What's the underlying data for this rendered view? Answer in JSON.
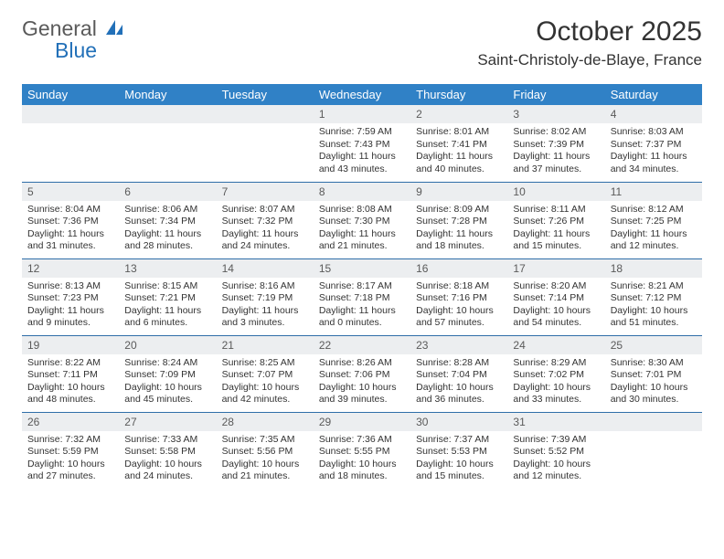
{
  "logo": {
    "general": "General",
    "blue": "Blue"
  },
  "title": "October 2025",
  "location": "Saint-Christoly-de-Blaye, France",
  "colors": {
    "header_bg": "#3081c6",
    "header_text": "#ffffff",
    "daynum_bg": "#eceef0",
    "rule": "#2f6ea8",
    "body_text": "#333333",
    "logo_gray": "#5a5a5a",
    "logo_blue": "#2270b8"
  },
  "weekdays": [
    "Sunday",
    "Monday",
    "Tuesday",
    "Wednesday",
    "Thursday",
    "Friday",
    "Saturday"
  ],
  "rows": [
    [
      {
        "n": "",
        "sr": "",
        "ss": "",
        "d1": "",
        "d2": ""
      },
      {
        "n": "",
        "sr": "",
        "ss": "",
        "d1": "",
        "d2": ""
      },
      {
        "n": "",
        "sr": "",
        "ss": "",
        "d1": "",
        "d2": ""
      },
      {
        "n": "1",
        "sr": "Sunrise: 7:59 AM",
        "ss": "Sunset: 7:43 PM",
        "d1": "Daylight: 11 hours",
        "d2": "and 43 minutes."
      },
      {
        "n": "2",
        "sr": "Sunrise: 8:01 AM",
        "ss": "Sunset: 7:41 PM",
        "d1": "Daylight: 11 hours",
        "d2": "and 40 minutes."
      },
      {
        "n": "3",
        "sr": "Sunrise: 8:02 AM",
        "ss": "Sunset: 7:39 PM",
        "d1": "Daylight: 11 hours",
        "d2": "and 37 minutes."
      },
      {
        "n": "4",
        "sr": "Sunrise: 8:03 AM",
        "ss": "Sunset: 7:37 PM",
        "d1": "Daylight: 11 hours",
        "d2": "and 34 minutes."
      }
    ],
    [
      {
        "n": "5",
        "sr": "Sunrise: 8:04 AM",
        "ss": "Sunset: 7:36 PM",
        "d1": "Daylight: 11 hours",
        "d2": "and 31 minutes."
      },
      {
        "n": "6",
        "sr": "Sunrise: 8:06 AM",
        "ss": "Sunset: 7:34 PM",
        "d1": "Daylight: 11 hours",
        "d2": "and 28 minutes."
      },
      {
        "n": "7",
        "sr": "Sunrise: 8:07 AM",
        "ss": "Sunset: 7:32 PM",
        "d1": "Daylight: 11 hours",
        "d2": "and 24 minutes."
      },
      {
        "n": "8",
        "sr": "Sunrise: 8:08 AM",
        "ss": "Sunset: 7:30 PM",
        "d1": "Daylight: 11 hours",
        "d2": "and 21 minutes."
      },
      {
        "n": "9",
        "sr": "Sunrise: 8:09 AM",
        "ss": "Sunset: 7:28 PM",
        "d1": "Daylight: 11 hours",
        "d2": "and 18 minutes."
      },
      {
        "n": "10",
        "sr": "Sunrise: 8:11 AM",
        "ss": "Sunset: 7:26 PM",
        "d1": "Daylight: 11 hours",
        "d2": "and 15 minutes."
      },
      {
        "n": "11",
        "sr": "Sunrise: 8:12 AM",
        "ss": "Sunset: 7:25 PM",
        "d1": "Daylight: 11 hours",
        "d2": "and 12 minutes."
      }
    ],
    [
      {
        "n": "12",
        "sr": "Sunrise: 8:13 AM",
        "ss": "Sunset: 7:23 PM",
        "d1": "Daylight: 11 hours",
        "d2": "and 9 minutes."
      },
      {
        "n": "13",
        "sr": "Sunrise: 8:15 AM",
        "ss": "Sunset: 7:21 PM",
        "d1": "Daylight: 11 hours",
        "d2": "and 6 minutes."
      },
      {
        "n": "14",
        "sr": "Sunrise: 8:16 AM",
        "ss": "Sunset: 7:19 PM",
        "d1": "Daylight: 11 hours",
        "d2": "and 3 minutes."
      },
      {
        "n": "15",
        "sr": "Sunrise: 8:17 AM",
        "ss": "Sunset: 7:18 PM",
        "d1": "Daylight: 11 hours",
        "d2": "and 0 minutes."
      },
      {
        "n": "16",
        "sr": "Sunrise: 8:18 AM",
        "ss": "Sunset: 7:16 PM",
        "d1": "Daylight: 10 hours",
        "d2": "and 57 minutes."
      },
      {
        "n": "17",
        "sr": "Sunrise: 8:20 AM",
        "ss": "Sunset: 7:14 PM",
        "d1": "Daylight: 10 hours",
        "d2": "and 54 minutes."
      },
      {
        "n": "18",
        "sr": "Sunrise: 8:21 AM",
        "ss": "Sunset: 7:12 PM",
        "d1": "Daylight: 10 hours",
        "d2": "and 51 minutes."
      }
    ],
    [
      {
        "n": "19",
        "sr": "Sunrise: 8:22 AM",
        "ss": "Sunset: 7:11 PM",
        "d1": "Daylight: 10 hours",
        "d2": "and 48 minutes."
      },
      {
        "n": "20",
        "sr": "Sunrise: 8:24 AM",
        "ss": "Sunset: 7:09 PM",
        "d1": "Daylight: 10 hours",
        "d2": "and 45 minutes."
      },
      {
        "n": "21",
        "sr": "Sunrise: 8:25 AM",
        "ss": "Sunset: 7:07 PM",
        "d1": "Daylight: 10 hours",
        "d2": "and 42 minutes."
      },
      {
        "n": "22",
        "sr": "Sunrise: 8:26 AM",
        "ss": "Sunset: 7:06 PM",
        "d1": "Daylight: 10 hours",
        "d2": "and 39 minutes."
      },
      {
        "n": "23",
        "sr": "Sunrise: 8:28 AM",
        "ss": "Sunset: 7:04 PM",
        "d1": "Daylight: 10 hours",
        "d2": "and 36 minutes."
      },
      {
        "n": "24",
        "sr": "Sunrise: 8:29 AM",
        "ss": "Sunset: 7:02 PM",
        "d1": "Daylight: 10 hours",
        "d2": "and 33 minutes."
      },
      {
        "n": "25",
        "sr": "Sunrise: 8:30 AM",
        "ss": "Sunset: 7:01 PM",
        "d1": "Daylight: 10 hours",
        "d2": "and 30 minutes."
      }
    ],
    [
      {
        "n": "26",
        "sr": "Sunrise: 7:32 AM",
        "ss": "Sunset: 5:59 PM",
        "d1": "Daylight: 10 hours",
        "d2": "and 27 minutes."
      },
      {
        "n": "27",
        "sr": "Sunrise: 7:33 AM",
        "ss": "Sunset: 5:58 PM",
        "d1": "Daylight: 10 hours",
        "d2": "and 24 minutes."
      },
      {
        "n": "28",
        "sr": "Sunrise: 7:35 AM",
        "ss": "Sunset: 5:56 PM",
        "d1": "Daylight: 10 hours",
        "d2": "and 21 minutes."
      },
      {
        "n": "29",
        "sr": "Sunrise: 7:36 AM",
        "ss": "Sunset: 5:55 PM",
        "d1": "Daylight: 10 hours",
        "d2": "and 18 minutes."
      },
      {
        "n": "30",
        "sr": "Sunrise: 7:37 AM",
        "ss": "Sunset: 5:53 PM",
        "d1": "Daylight: 10 hours",
        "d2": "and 15 minutes."
      },
      {
        "n": "31",
        "sr": "Sunrise: 7:39 AM",
        "ss": "Sunset: 5:52 PM",
        "d1": "Daylight: 10 hours",
        "d2": "and 12 minutes."
      },
      {
        "n": "",
        "sr": "",
        "ss": "",
        "d1": "",
        "d2": ""
      }
    ]
  ]
}
